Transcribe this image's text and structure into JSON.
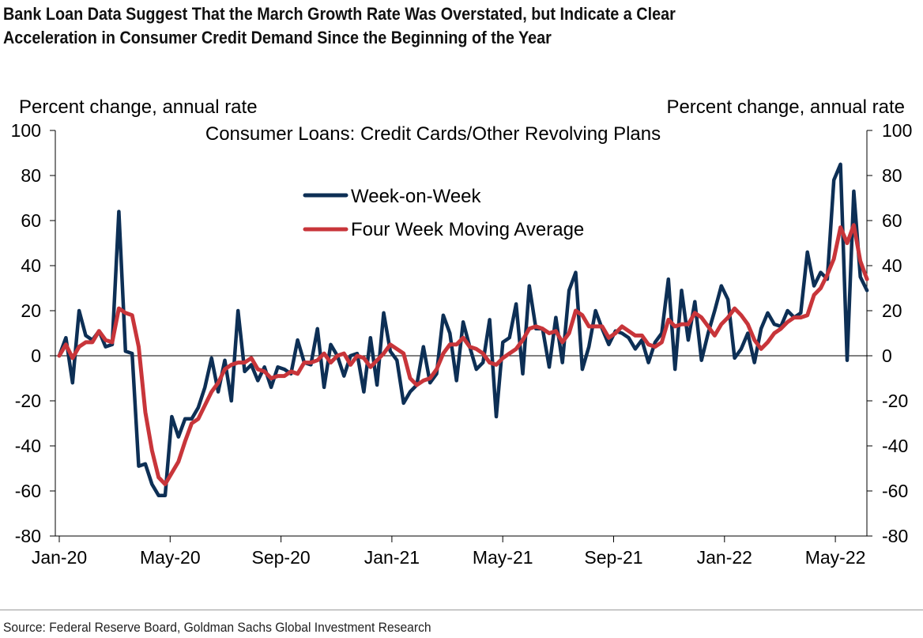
{
  "title": {
    "line1": "Bank Loan Data Suggest That the March Growth Rate Was Overstated, but Indicate a Clear",
    "line2": "Acceleration in Consumer Credit Demand Since the Beginning of the Year"
  },
  "source": "Source: Federal Reserve Board, Goldman Sachs Global Investment Research",
  "colors": {
    "week": "#0d2f55",
    "avg": "#c8353a",
    "axis": "#000000"
  },
  "chart_data": {
    "type": "line",
    "title": "Consumer Loans: Credit Cards/Other Revolving Plans",
    "ylabel_left": "Percent change, annual rate",
    "ylabel_right": "Percent change, annual rate",
    "ylim": [
      -80,
      100
    ],
    "yticks": [
      -80,
      -60,
      -40,
      -20,
      0,
      20,
      40,
      60,
      80,
      100
    ],
    "ytick_labels": [
      "-80",
      "-60",
      "-40",
      "-20",
      "0",
      "20",
      "40",
      "60",
      "80",
      "100"
    ],
    "xticks": [
      "Jan-20",
      "May-20",
      "Sep-20",
      "Jan-21",
      "May-21",
      "Sep-21",
      "Jan-22",
      "May-22"
    ],
    "x_axis_units": "weeks since first Jan-20 week (17.14 weeks per tick)",
    "legend_position": "upper-center",
    "grid": false,
    "series": [
      {
        "name": "Week-on-Week",
        "values": [
          0,
          8,
          -12,
          20,
          9,
          7,
          11,
          4,
          5,
          64,
          2,
          1,
          -49,
          -48,
          -57,
          -62,
          -62,
          -27,
          -36,
          -28,
          -28,
          -23,
          -14,
          -1,
          -16,
          -2,
          -20,
          20,
          -7,
          -4,
          -11,
          -5,
          -14,
          -5,
          -6,
          -8,
          7,
          -3,
          -4,
          12,
          -14,
          5,
          0,
          -9,
          0,
          1,
          -16,
          8,
          -13,
          19,
          2,
          -2,
          -21,
          -16,
          -13,
          4,
          -12,
          -8,
          18,
          10,
          -11,
          15,
          4,
          -6,
          -3,
          16,
          -27,
          6,
          8,
          23,
          -8,
          31,
          12,
          12,
          -5,
          17,
          -3,
          29,
          37,
          -6,
          4,
          20,
          12,
          5,
          11,
          10,
          8,
          3,
          7,
          -3,
          6,
          10,
          34,
          -6,
          29,
          7,
          24,
          -2,
          10,
          20,
          31,
          25,
          -1,
          3,
          10,
          -3,
          12,
          19,
          14,
          13,
          20,
          17,
          19,
          46,
          31,
          37,
          34,
          78,
          85,
          -2,
          73,
          35,
          29
        ]
      },
      {
        "name": "Four Week Moving Average",
        "values": [
          0,
          5,
          -1,
          4,
          6,
          6,
          11,
          7,
          6,
          21,
          19,
          18,
          4,
          -25,
          -42,
          -54,
          -57,
          -52,
          -47,
          -38,
          -30,
          -28,
          -22,
          -16,
          -12,
          -6,
          -4,
          -3,
          -3,
          -1,
          -6,
          -7,
          -10,
          -9,
          -9,
          -7,
          -8,
          -3,
          -3,
          -2,
          1,
          -3,
          0,
          1,
          -4,
          0,
          -1,
          -5,
          -2,
          1,
          5,
          3,
          1,
          -10,
          -13,
          -11,
          -10,
          -6,
          1,
          5,
          5,
          8,
          4,
          3,
          1,
          -3,
          -4,
          -1,
          1,
          3,
          7,
          12,
          13,
          12,
          10,
          11,
          6,
          10,
          20,
          18,
          13,
          13,
          13,
          8,
          10,
          13,
          11,
          9,
          9,
          5,
          4,
          6,
          16,
          13,
          14,
          14,
          19,
          17,
          13,
          9,
          14,
          17,
          21,
          18,
          14,
          7,
          3,
          6,
          10,
          12,
          15,
          17,
          17,
          18,
          27,
          30,
          36,
          43,
          57,
          50,
          58,
          42,
          34
        ]
      }
    ]
  }
}
